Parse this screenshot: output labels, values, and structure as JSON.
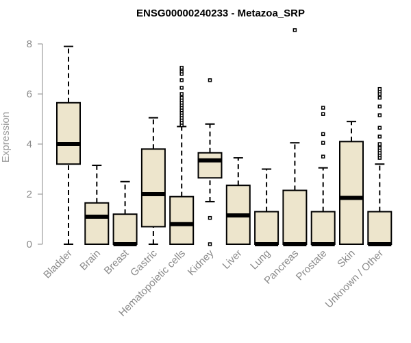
{
  "chart_data": {
    "type": "boxplot",
    "title": "ENSG00000240233 - Metazoa_SRP",
    "xlabel": "",
    "ylabel": "Expression",
    "ylim": [
      0,
      8
    ],
    "yticks": [
      0,
      2,
      4,
      6,
      8
    ],
    "grid": false,
    "categories": [
      "Bladder",
      "Brain",
      "Breast",
      "Gastric",
      "Hematopoietic cells",
      "Kidney",
      "Liver",
      "Lung",
      "Pancreas",
      "Prostate",
      "Skin",
      "Unknown / Other"
    ],
    "boxes": [
      {
        "min": 0,
        "q1": 3.2,
        "median": 4.0,
        "q3": 5.65,
        "max": 7.9,
        "outliers": []
      },
      {
        "min": 0,
        "q1": 0,
        "median": 1.1,
        "q3": 1.65,
        "max": 3.15,
        "outliers": []
      },
      {
        "min": 0,
        "q1": 0,
        "median": 0,
        "q3": 1.2,
        "max": 2.5,
        "outliers": []
      },
      {
        "min": 0,
        "q1": 0.7,
        "median": 2.0,
        "q3": 3.8,
        "max": 5.05,
        "outliers": []
      },
      {
        "min": 0,
        "q1": 0,
        "median": 0.8,
        "q3": 1.9,
        "max": 4.7,
        "outliers": [
          4.75,
          4.85,
          4.95,
          5.05,
          5.15,
          5.25,
          5.35,
          5.45,
          5.55,
          5.65,
          5.75,
          5.85,
          6.0,
          6.25,
          6.55,
          6.8,
          6.9,
          7.0,
          7.05
        ]
      },
      {
        "min": 1.7,
        "q1": 2.65,
        "median": 3.35,
        "q3": 3.65,
        "max": 4.8,
        "outliers": [
          0,
          1.05,
          6.55
        ]
      },
      {
        "min": 0,
        "q1": 0,
        "median": 1.15,
        "q3": 2.35,
        "max": 3.45,
        "outliers": []
      },
      {
        "min": 0,
        "q1": 0,
        "median": 0,
        "q3": 1.3,
        "max": 3.0,
        "outliers": []
      },
      {
        "min": 0,
        "q1": 0,
        "median": 0,
        "q3": 2.15,
        "max": 4.05,
        "outliers": [
          8.55
        ]
      },
      {
        "min": 0,
        "q1": 0,
        "median": 0,
        "q3": 1.3,
        "max": 3.05,
        "outliers": [
          3.5,
          4.05,
          4.4,
          5.2,
          5.45
        ]
      },
      {
        "min": 0,
        "q1": 0,
        "median": 1.85,
        "q3": 4.1,
        "max": 4.9,
        "outliers": []
      },
      {
        "min": 0,
        "q1": 0,
        "median": 0,
        "q3": 1.3,
        "max": 3.2,
        "outliers": [
          3.45,
          3.55,
          3.65,
          3.75,
          3.85,
          3.95,
          4.0,
          4.3,
          4.65,
          5.15,
          5.5,
          5.85,
          6.0,
          6.1,
          6.2
        ]
      }
    ],
    "box_fill": "#ede5cc",
    "stroke_color": "#000000",
    "axis_text_color": "#8a8a8a"
  }
}
